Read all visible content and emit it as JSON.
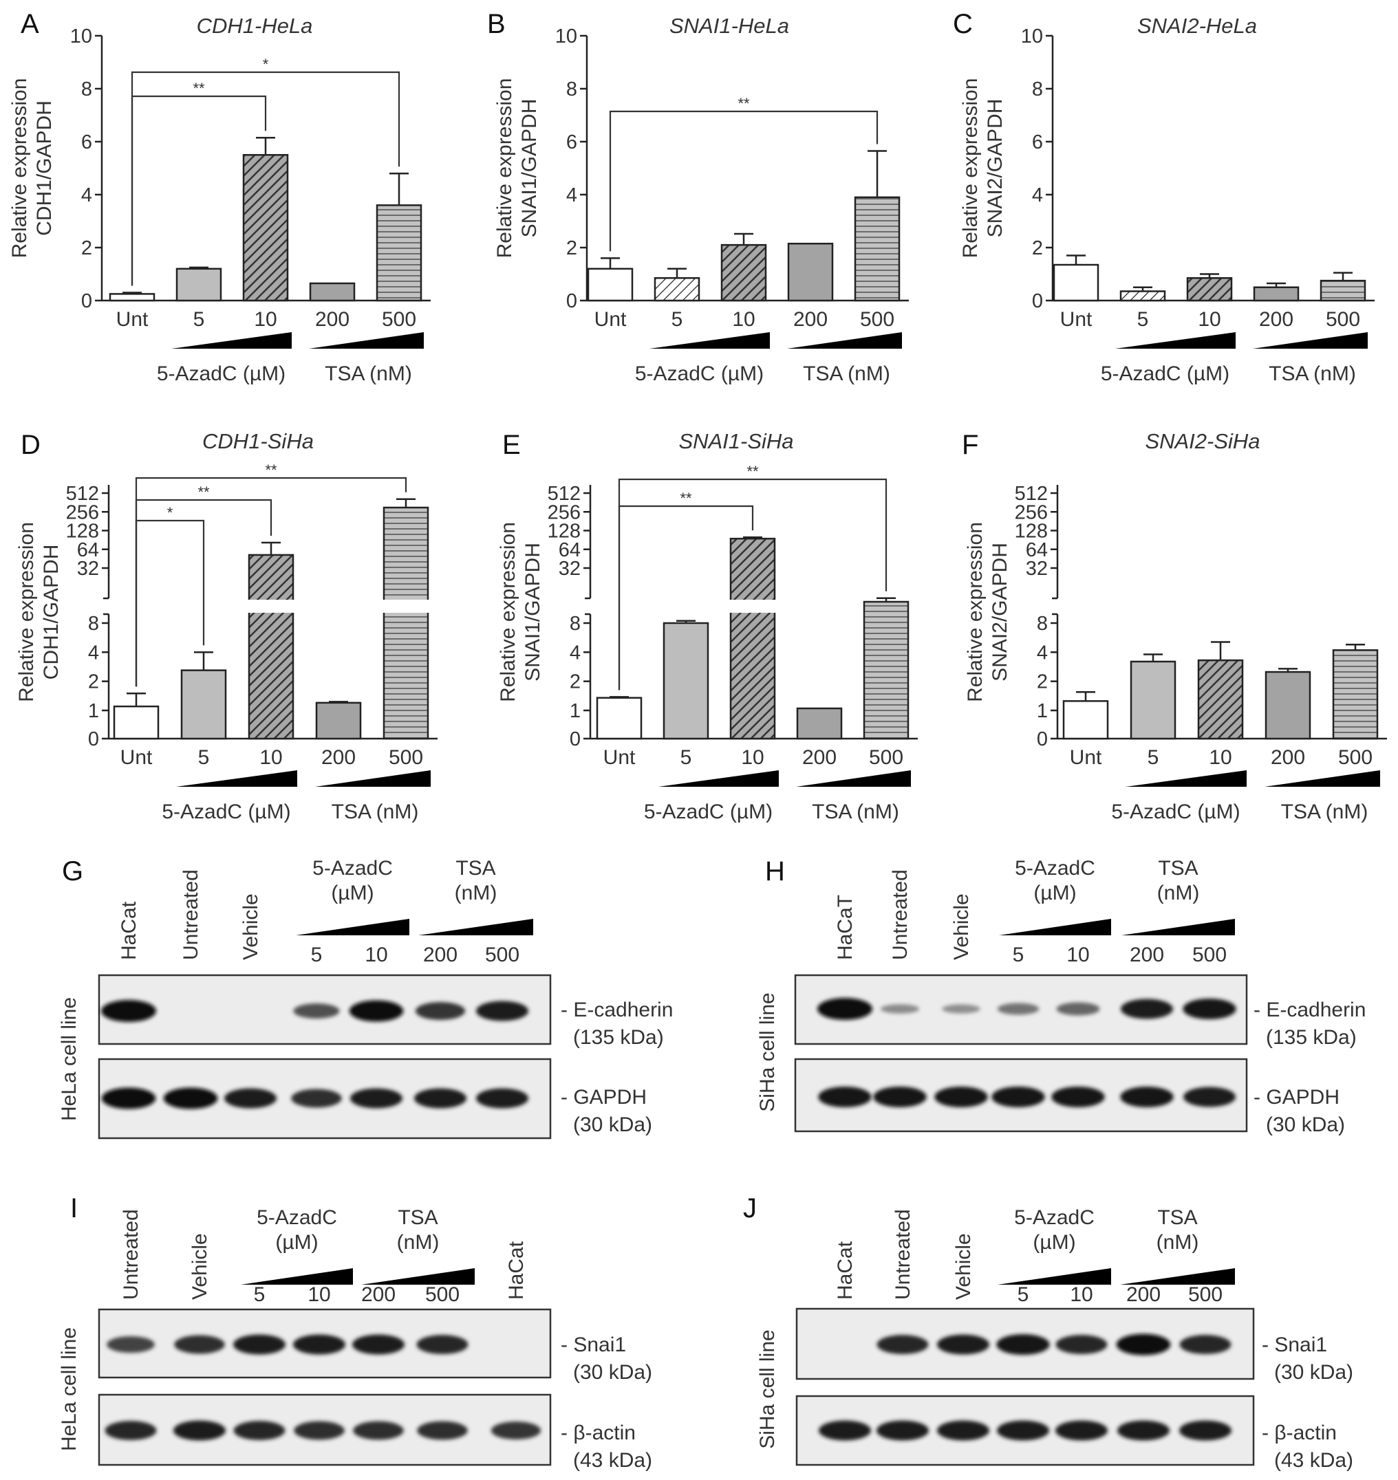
{
  "chart_data": [
    {
      "panel": "A",
      "type": "bar",
      "scale": "linear",
      "title": "CDH1-HeLa",
      "ylabel": [
        "Relative expression",
        "CDH1/GAPDH"
      ],
      "yticks": [
        "0",
        "2",
        "4",
        "6",
        "8",
        "10"
      ],
      "ylim": [
        0,
        10
      ],
      "categories": [
        "Unt",
        "5",
        "10",
        "200",
        "500"
      ],
      "values": [
        0.25,
        1.2,
        5.5,
        0.65,
        3.6
      ],
      "errors": [
        0.05,
        0.05,
        0.65,
        0,
        1.2
      ],
      "group_labels": [
        "5-AzadC (µM)",
        "TSA (nM)"
      ],
      "significance": [
        {
          "from": "Unt",
          "to": "10",
          "label": "**"
        },
        {
          "from": "Unt",
          "to": "500",
          "label": "*"
        }
      ]
    },
    {
      "panel": "B",
      "type": "bar",
      "scale": "linear",
      "title": "SNAI1-HeLa",
      "ylabel": [
        "Relative expression",
        "SNAI1/GAPDH"
      ],
      "yticks": [
        "0",
        "2",
        "4",
        "6",
        "8",
        "10"
      ],
      "ylim": [
        0,
        10
      ],
      "categories": [
        "Unt",
        "5",
        "10",
        "200",
        "500"
      ],
      "values": [
        1.2,
        0.85,
        2.1,
        2.15,
        3.9
      ],
      "errors": [
        0.4,
        0.35,
        0.42,
        0,
        1.75
      ],
      "group_labels": [
        "5-AzadC (µM)",
        "TSA (nM)"
      ],
      "significance": [
        {
          "from": "Unt",
          "to": "500",
          "label": "**"
        }
      ]
    },
    {
      "panel": "C",
      "type": "bar",
      "scale": "linear",
      "title": "SNAI2-HeLa",
      "ylabel": [
        "Relative expression",
        "SNAI2/GAPDH"
      ],
      "yticks": [
        "0",
        "2",
        "4",
        "6",
        "8",
        "10"
      ],
      "ylim": [
        0,
        10
      ],
      "categories": [
        "Unt",
        "5",
        "10",
        "200",
        "500"
      ],
      "values": [
        1.35,
        0.35,
        0.85,
        0.5,
        0.75
      ],
      "errors": [
        0.35,
        0.15,
        0.15,
        0.15,
        0.3
      ],
      "group_labels": [
        "5-AzadC (µM)",
        "TSA (nM)"
      ],
      "significance": []
    },
    {
      "panel": "D",
      "type": "bar",
      "scale": "log2-broken",
      "title": "CDH1-SiHa",
      "ylabel": [
        "Relative expression",
        "CDH1/GAPDH"
      ],
      "yticks": [
        "0",
        "1",
        "2",
        "4",
        "8",
        "32",
        "64",
        "128",
        "256",
        "512"
      ],
      "categories": [
        "Unt",
        "5",
        "10",
        "200",
        "500"
      ],
      "values": [
        1.1,
        2.6,
        52,
        1.2,
        300
      ],
      "errors": [
        0.4,
        1.4,
        30,
        0.03,
        110
      ],
      "group_labels": [
        "5-AzadC (µM)",
        "TSA (nM)"
      ],
      "significance": [
        {
          "from": "Unt",
          "to": "5",
          "label": "*"
        },
        {
          "from": "Unt",
          "to": "10",
          "label": "**"
        },
        {
          "from": "Unt",
          "to": "500",
          "label": "**"
        }
      ]
    },
    {
      "panel": "E",
      "type": "bar",
      "scale": "log2-broken",
      "title": "SNAI1-SiHa",
      "ylabel": [
        "Relative expression",
        "SNAI1/GAPDH"
      ],
      "yticks": [
        "0",
        "1",
        "2",
        "4",
        "8",
        "32",
        "64",
        "128",
        "256",
        "512"
      ],
      "categories": [
        "Unt",
        "5",
        "10",
        "200",
        "500"
      ],
      "values": [
        1.35,
        8,
        95,
        1.05,
        16
      ],
      "errors": [
        0.03,
        0.6,
        5,
        0,
        2
      ],
      "group_labels": [
        "5-AzadC (µM)",
        "TSA (nM)"
      ],
      "significance": [
        {
          "from": "Unt",
          "to": "10",
          "label": "**"
        },
        {
          "from": "Unt",
          "to": "500",
          "label": "**"
        }
      ]
    },
    {
      "panel": "F",
      "type": "bar",
      "scale": "log2-broken",
      "title": "SNAI2-SiHa",
      "ylabel": [
        "Relative expression",
        "SNAI2/GAPDH"
      ],
      "yticks": [
        "0",
        "1",
        "2",
        "4",
        "8",
        "32",
        "64",
        "128",
        "256",
        "512"
      ],
      "categories": [
        "Unt",
        "5",
        "10",
        "200",
        "500"
      ],
      "values": [
        1.25,
        3.2,
        3.3,
        2.5,
        4.2
      ],
      "errors": [
        0.3,
        0.6,
        1.8,
        0.2,
        0.6
      ],
      "group_labels": [
        "5-AzadC (µM)",
        "TSA (nM)"
      ],
      "significance": []
    }
  ],
  "blots": [
    {
      "panel": "G",
      "cell_line": "HeLa cell line",
      "lanes": [
        "HaCat",
        "Untreated",
        "Vehicle",
        "5",
        "10",
        "200",
        "500"
      ],
      "group_labels": [
        "5-AzadC\n(µM)",
        "TSA\n(nM)"
      ],
      "rows": [
        {
          "name": "E-cadherin",
          "size": "(135 kDa)",
          "intensity": [
            1.0,
            0,
            0,
            0.5,
            0.95,
            0.7,
            0.85
          ]
        },
        {
          "name": "GAPDH",
          "size": "(30 kDa)",
          "intensity": [
            0.95,
            0.95,
            0.85,
            0.75,
            0.85,
            0.85,
            0.85
          ]
        }
      ]
    },
    {
      "panel": "H",
      "cell_line": "SiHa cell line",
      "lanes": [
        "HaCaT",
        "Untreated",
        "Vehicle",
        "5",
        "10",
        "200",
        "500"
      ],
      "group_labels": [
        "5-AzadC\n(µM)",
        "TSA\n(nM)"
      ],
      "rows": [
        {
          "name": "E-cadherin",
          "size": "(135 kDa)",
          "intensity": [
            1.0,
            0.08,
            0.06,
            0.25,
            0.35,
            0.85,
            0.9
          ]
        },
        {
          "name": "GAPDH",
          "size": "(30 kDa)",
          "intensity": [
            0.9,
            0.9,
            0.9,
            0.9,
            0.9,
            0.9,
            0.85
          ]
        }
      ]
    },
    {
      "panel": "I",
      "cell_line": "HeLa cell line",
      "lanes": [
        "Untreated",
        "Vehicle",
        "5",
        "10",
        "200",
        "500",
        "HaCat"
      ],
      "group_labels": [
        "5-AzadC\n(µM)",
        "TSA\n(nM)"
      ],
      "rows": [
        {
          "name": "Snai1",
          "size": "(30 kDa)",
          "intensity": [
            0.6,
            0.75,
            0.85,
            0.85,
            0.85,
            0.8,
            0
          ]
        },
        {
          "name": "β-actin",
          "size": "(43 kDa)",
          "intensity": [
            0.8,
            0.85,
            0.8,
            0.75,
            0.75,
            0.75,
            0.7
          ]
        }
      ]
    },
    {
      "panel": "J",
      "cell_line": "SiHa cell line",
      "lanes": [
        "HaCat",
        "Untreated",
        "Vehicle",
        "5",
        "10",
        "200",
        "500"
      ],
      "group_labels": [
        "5-AzadC\n(µM)",
        "TSA\n(nM)"
      ],
      "rows": [
        {
          "name": "Snai1",
          "size": "(30 kDa)",
          "intensity": [
            0,
            0.8,
            0.85,
            0.9,
            0.8,
            0.95,
            0.8
          ]
        },
        {
          "name": "β-actin",
          "size": "(43 kDa)",
          "intensity": [
            0.85,
            0.85,
            0.85,
            0.85,
            0.85,
            0.85,
            0.85
          ]
        }
      ]
    }
  ]
}
